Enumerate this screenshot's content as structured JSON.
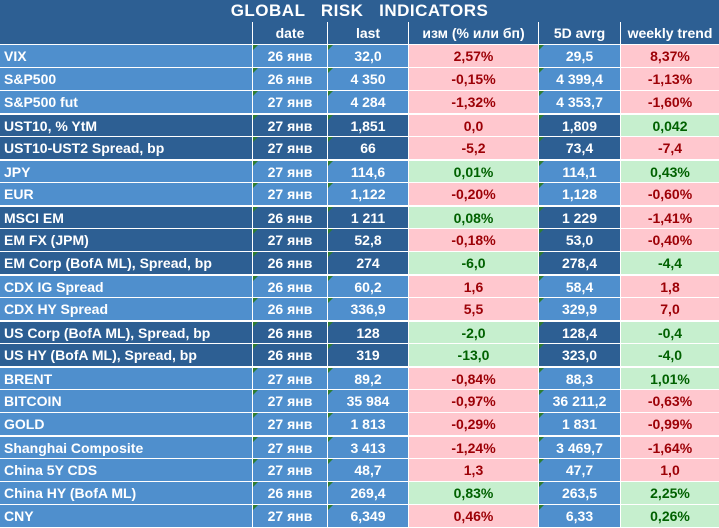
{
  "title": "GLOBAL   RISK   INDICATORS",
  "headers": [
    "",
    "date",
    "last",
    "изм (% или бп)",
    "5D avrg",
    "weekly trend"
  ],
  "rows": [
    {
      "name": "VIX",
      "date": "26 янв",
      "last": "32,0",
      "chg": "2,57%",
      "chg_sign": "neg",
      "avg": "29,5",
      "trend": "8,37%",
      "trend_sign": "neg",
      "shade": "light"
    },
    {
      "name": "S&P500",
      "date": "26 янв",
      "last": "4 350",
      "chg": "-0,15%",
      "chg_sign": "neg",
      "avg": "4 399,4",
      "trend": "-1,13%",
      "trend_sign": "neg",
      "shade": "light"
    },
    {
      "name": "S&P500 fut",
      "date": "27 янв",
      "last": "4 284",
      "chg": "-1,32%",
      "chg_sign": "neg",
      "avg": "4 353,7",
      "trend": "-1,60%",
      "trend_sign": "neg",
      "shade": "light"
    },
    {
      "name": "UST10, % YtM",
      "date": "27 янв",
      "last": "1,851",
      "chg": "0,0",
      "chg_sign": "neg",
      "avg": "1,809",
      "trend": "0,042",
      "trend_sign": "pos",
      "shade": "dark"
    },
    {
      "name": "UST10-UST2 Spread, bp",
      "date": "27 янв",
      "last": "66",
      "chg": "-5,2",
      "chg_sign": "neg",
      "avg": "73,4",
      "trend": "-7,4",
      "trend_sign": "neg",
      "shade": "dark"
    },
    {
      "name": "JPY",
      "date": "27 янв",
      "last": "114,6",
      "chg": "0,01%",
      "chg_sign": "pos",
      "avg": "114,1",
      "trend": "0,43%",
      "trend_sign": "pos",
      "shade": "light"
    },
    {
      "name": "EUR",
      "date": "27 янв",
      "last": "1,122",
      "chg": "-0,20%",
      "chg_sign": "neg",
      "avg": "1,128",
      "trend": "-0,60%",
      "trend_sign": "neg",
      "shade": "light"
    },
    {
      "name": "MSCI EM",
      "date": "26 янв",
      "last": "1 211",
      "chg": "0,08%",
      "chg_sign": "pos",
      "avg": "1 229",
      "trend": "-1,41%",
      "trend_sign": "neg",
      "shade": "dark"
    },
    {
      "name": "EM FX (JPM)",
      "date": "27 янв",
      "last": "52,8",
      "chg": "-0,18%",
      "chg_sign": "neg",
      "avg": "53,0",
      "trend": "-0,40%",
      "trend_sign": "neg",
      "shade": "dark"
    },
    {
      "name": "EM Corp (BofA ML), Spread, bp",
      "date": "26 янв",
      "last": "274",
      "chg": "-6,0",
      "chg_sign": "pos",
      "avg": "278,4",
      "trend": "-4,4",
      "trend_sign": "pos",
      "shade": "dark"
    },
    {
      "name": "CDX IG Spread",
      "date": "26 янв",
      "last": "60,2",
      "chg": "1,6",
      "chg_sign": "neg",
      "avg": "58,4",
      "trend": "1,8",
      "trend_sign": "neg",
      "shade": "light"
    },
    {
      "name": "CDX HY Spread",
      "date": "26 янв",
      "last": "336,9",
      "chg": "5,5",
      "chg_sign": "neg",
      "avg": "329,9",
      "trend": "7,0",
      "trend_sign": "neg",
      "shade": "light"
    },
    {
      "name": "US Corp (BofA ML), Spread, bp",
      "date": "26 янв",
      "last": "128",
      "chg": "-2,0",
      "chg_sign": "pos",
      "avg": "128,4",
      "trend": "-0,4",
      "trend_sign": "pos",
      "shade": "dark"
    },
    {
      "name": "US HY (BofA ML), Spread, bp",
      "date": "26 янв",
      "last": "319",
      "chg": "-13,0",
      "chg_sign": "pos",
      "avg": "323,0",
      "trend": "-4,0",
      "trend_sign": "pos",
      "shade": "dark"
    },
    {
      "name": "BRENT",
      "date": "27 янв",
      "last": "89,2",
      "chg": "-0,84%",
      "chg_sign": "neg",
      "avg": "88,3",
      "trend": "1,01%",
      "trend_sign": "pos",
      "shade": "light"
    },
    {
      "name": "BITCOIN",
      "date": "27 янв",
      "last": "35 984",
      "chg": "-0,97%",
      "chg_sign": "neg",
      "avg": "36 211,2",
      "trend": "-0,63%",
      "trend_sign": "neg",
      "shade": "light"
    },
    {
      "name": "GOLD",
      "date": "27 янв",
      "last": "1 813",
      "chg": "-0,29%",
      "chg_sign": "neg",
      "avg": "1 831",
      "trend": "-0,99%",
      "trend_sign": "neg",
      "shade": "light"
    },
    {
      "name": "Shanghai Composite",
      "date": "27 янв",
      "last": "3 413",
      "chg": "-1,24%",
      "chg_sign": "neg",
      "avg": "3 469,7",
      "trend": "-1,64%",
      "trend_sign": "neg",
      "shade": "light"
    },
    {
      "name": "China 5Y CDS",
      "date": "27 янв",
      "last": "48,7",
      "chg": "1,3",
      "chg_sign": "neg",
      "avg": "47,7",
      "trend": "1,0",
      "trend_sign": "neg",
      "shade": "light"
    },
    {
      "name": "China HY (BofA ML)",
      "date": "26 янв",
      "last": "269,4",
      "chg": "0,83%",
      "chg_sign": "pos",
      "avg": "263,5",
      "trend": "2,25%",
      "trend_sign": "pos",
      "shade": "light"
    },
    {
      "name": "CNY",
      "date": "27 янв",
      "last": "6,349",
      "chg": "0,46%",
      "chg_sign": "neg",
      "avg": "6,33",
      "trend": "0,26%",
      "trend_sign": "pos",
      "shade": "light"
    }
  ],
  "group_starts": [
    3,
    5,
    7,
    10,
    12,
    14,
    17
  ]
}
